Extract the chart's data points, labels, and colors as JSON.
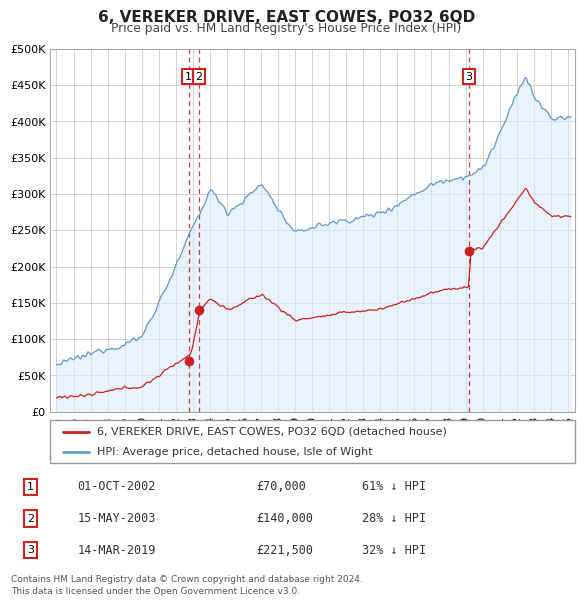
{
  "title": "6, VEREKER DRIVE, EAST COWES, PO32 6QD",
  "subtitle": "Price paid vs. HM Land Registry's House Price Index (HPI)",
  "background_color": "#ffffff",
  "plot_bg_color": "#ffffff",
  "grid_color": "#cccccc",
  "red_color": "#cc2222",
  "blue_color": "#6699cc",
  "blue_fill_color": "#ddeeff",
  "transactions": [
    {
      "label": "1",
      "date_dec": 2002.75,
      "price": 70000,
      "note": "01-OCT-2002",
      "price_str": "£70,000",
      "pct": "61% ↓ HPI"
    },
    {
      "label": "2",
      "date_dec": 2003.37,
      "price": 140000,
      "note": "15-MAY-2003",
      "price_str": "£140,000",
      "pct": "28% ↓ HPI"
    },
    {
      "label": "3",
      "date_dec": 2019.2,
      "price": 221500,
      "note": "14-MAR-2019",
      "price_str": "£221,500",
      "pct": "32% ↓ HPI"
    }
  ],
  "legend_red": "6, VEREKER DRIVE, EAST COWES, PO32 6QD (detached house)",
  "legend_blue": "HPI: Average price, detached house, Isle of Wight",
  "footer": "Contains HM Land Registry data © Crown copyright and database right 2024.\nThis data is licensed under the Open Government Licence v3.0.",
  "ylim": [
    0,
    500000
  ],
  "yticks": [
    0,
    50000,
    100000,
    150000,
    200000,
    250000,
    300000,
    350000,
    400000,
    450000,
    500000
  ],
  "xlim_start": 1994.6,
  "xlim_end": 2025.4
}
